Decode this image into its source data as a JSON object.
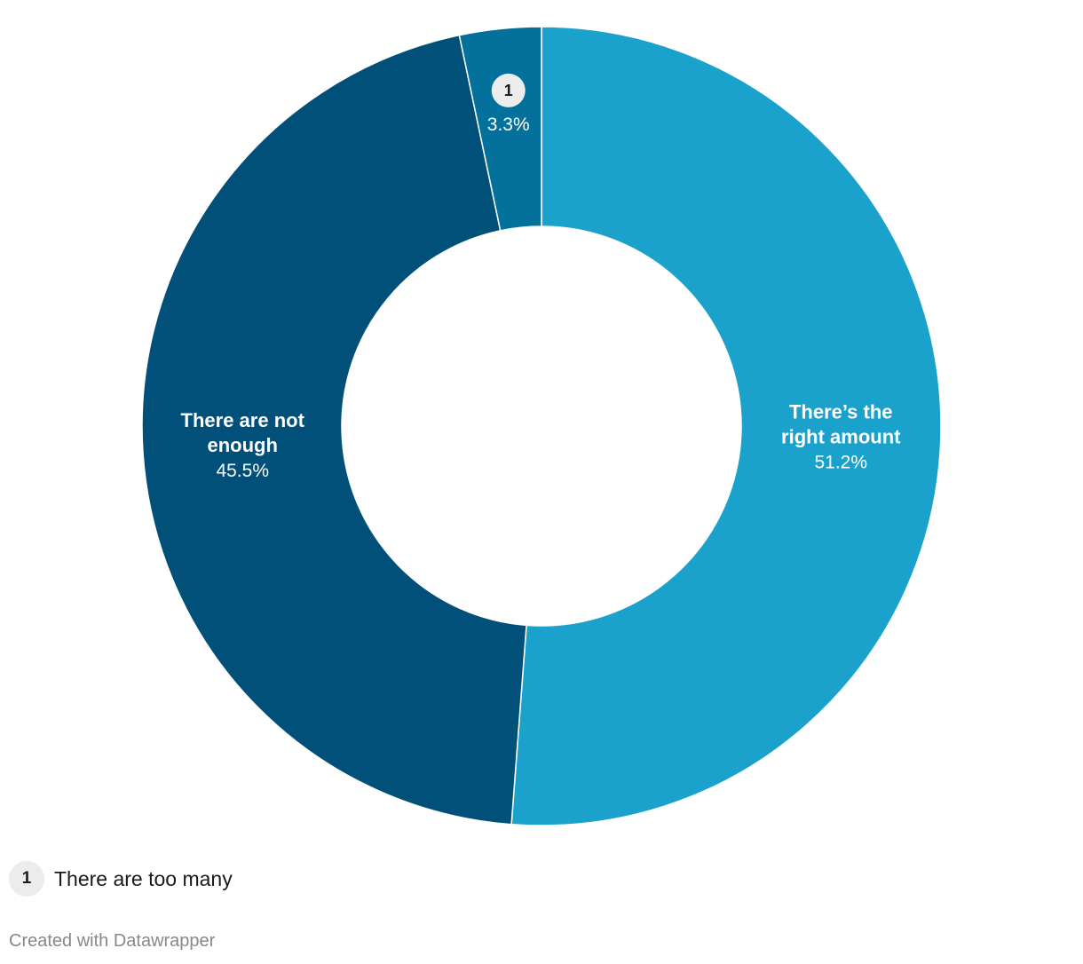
{
  "chart_data": {
    "type": "pie",
    "variant": "donut",
    "categories": [
      "There’s the right amount",
      "There are not enough",
      "There are too many"
    ],
    "values": [
      51.2,
      45.5,
      3.3
    ],
    "value_labels": [
      "51.2%",
      "45.5%",
      "3.3%"
    ],
    "colors": [
      "#1aa2cd",
      "#005079",
      "#04719c"
    ],
    "slice_labels": [
      {
        "lines": [
          "There’s the",
          "right amount"
        ],
        "value": "51.2%",
        "marker": ""
      },
      {
        "lines": [
          "There are not",
          "enough"
        ],
        "value": "45.5%",
        "marker": ""
      },
      {
        "lines": [],
        "value": "3.3%",
        "marker": "1"
      }
    ],
    "title": "",
    "legend_placement": "bottom-left"
  },
  "legend": {
    "marker": "1",
    "label": "There are too many"
  },
  "footer": {
    "credit": "Created with Datawrapper"
  }
}
